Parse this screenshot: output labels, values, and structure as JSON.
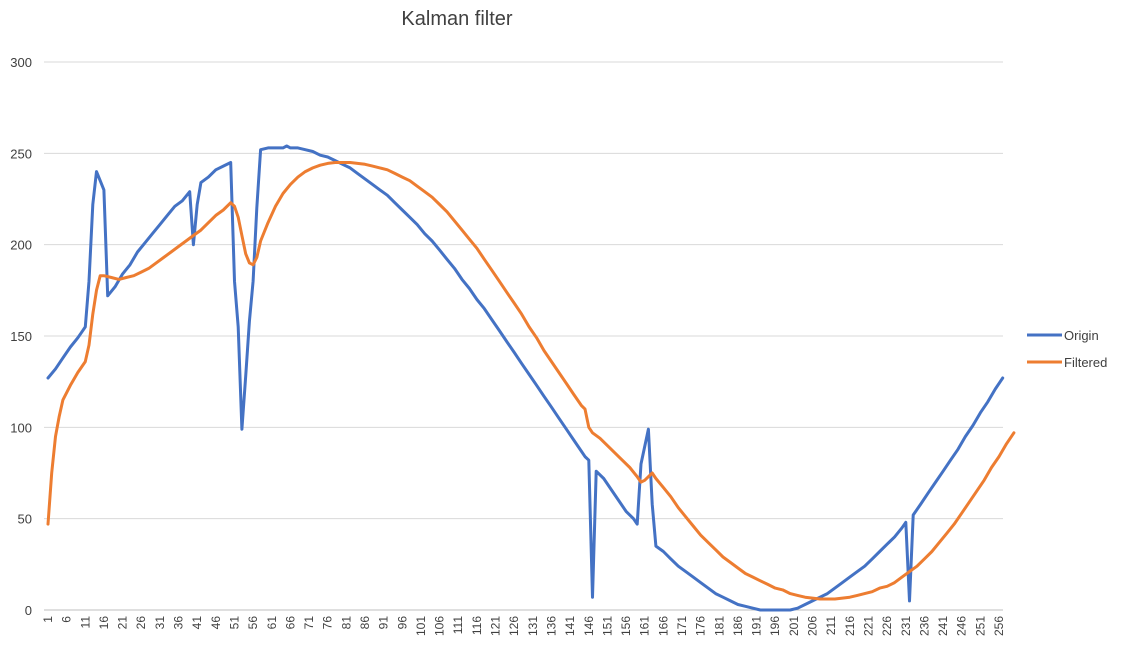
{
  "chart_data": {
    "type": "line",
    "title": "Kalman filter",
    "xlabel": "",
    "ylabel": "",
    "ylim": [
      0,
      300
    ],
    "yticks": [
      0,
      50,
      100,
      150,
      200,
      250,
      300
    ],
    "xlim": [
      1,
      256
    ],
    "xtick_labels": [
      "1",
      "6",
      "11",
      "16",
      "21",
      "26",
      "31",
      "36",
      "41",
      "46",
      "51",
      "56",
      "61",
      "66",
      "71",
      "76",
      "81",
      "86",
      "91",
      "96",
      "101",
      "106",
      "111",
      "116",
      "121",
      "126",
      "131",
      "136",
      "141",
      "146",
      "151",
      "156",
      "161",
      "166",
      "171",
      "176",
      "181",
      "186",
      "191",
      "196",
      "201",
      "206",
      "211",
      "216",
      "221",
      "226",
      "231",
      "236",
      "241",
      "246",
      "251",
      "256"
    ],
    "grid": "horizontal",
    "legend_position": "right",
    "series": [
      {
        "name": "Origin",
        "color": "#4472C4",
        "points": [
          [
            1,
            127
          ],
          [
            3,
            132
          ],
          [
            5,
            138
          ],
          [
            7,
            144
          ],
          [
            9,
            149
          ],
          [
            10,
            152
          ],
          [
            11,
            155
          ],
          [
            12,
            180
          ],
          [
            13,
            222
          ],
          [
            14,
            240
          ],
          [
            15,
            235
          ],
          [
            16,
            230
          ],
          [
            17,
            172
          ],
          [
            19,
            177
          ],
          [
            21,
            184
          ],
          [
            23,
            189
          ],
          [
            25,
            196
          ],
          [
            27,
            201
          ],
          [
            29,
            206
          ],
          [
            31,
            211
          ],
          [
            33,
            216
          ],
          [
            35,
            221
          ],
          [
            37,
            224
          ],
          [
            39,
            229
          ],
          [
            40,
            200
          ],
          [
            41,
            222
          ],
          [
            42,
            234
          ],
          [
            44,
            237
          ],
          [
            46,
            241
          ],
          [
            48,
            243
          ],
          [
            50,
            245
          ],
          [
            51,
            180
          ],
          [
            52,
            155
          ],
          [
            53,
            99
          ],
          [
            54,
            128
          ],
          [
            55,
            158
          ],
          [
            56,
            180
          ],
          [
            57,
            220
          ],
          [
            58,
            252
          ],
          [
            60,
            253
          ],
          [
            62,
            253
          ],
          [
            64,
            253
          ],
          [
            65,
            254
          ],
          [
            66,
            253
          ],
          [
            68,
            253
          ],
          [
            70,
            252
          ],
          [
            72,
            251
          ],
          [
            74,
            249
          ],
          [
            76,
            248
          ],
          [
            78,
            246
          ],
          [
            80,
            244
          ],
          [
            82,
            242
          ],
          [
            84,
            239
          ],
          [
            86,
            236
          ],
          [
            88,
            233
          ],
          [
            90,
            230
          ],
          [
            92,
            227
          ],
          [
            94,
            223
          ],
          [
            96,
            219
          ],
          [
            98,
            215
          ],
          [
            100,
            211
          ],
          [
            102,
            206
          ],
          [
            104,
            202
          ],
          [
            106,
            197
          ],
          [
            108,
            192
          ],
          [
            110,
            187
          ],
          [
            112,
            181
          ],
          [
            114,
            176
          ],
          [
            116,
            170
          ],
          [
            118,
            165
          ],
          [
            120,
            159
          ],
          [
            122,
            153
          ],
          [
            124,
            147
          ],
          [
            126,
            141
          ],
          [
            128,
            135
          ],
          [
            130,
            129
          ],
          [
            132,
            123
          ],
          [
            134,
            117
          ],
          [
            136,
            111
          ],
          [
            138,
            105
          ],
          [
            140,
            99
          ],
          [
            142,
            93
          ],
          [
            144,
            87
          ],
          [
            145,
            84
          ],
          [
            146,
            82
          ],
          [
            147,
            7
          ],
          [
            148,
            76
          ],
          [
            150,
            72
          ],
          [
            152,
            66
          ],
          [
            154,
            60
          ],
          [
            156,
            54
          ],
          [
            158,
            50
          ],
          [
            159,
            47
          ],
          [
            160,
            80
          ],
          [
            162,
            99
          ],
          [
            163,
            58
          ],
          [
            164,
            35
          ],
          [
            166,
            32
          ],
          [
            168,
            28
          ],
          [
            170,
            24
          ],
          [
            172,
            21
          ],
          [
            174,
            18
          ],
          [
            176,
            15
          ],
          [
            178,
            12
          ],
          [
            180,
            9
          ],
          [
            182,
            7
          ],
          [
            184,
            5
          ],
          [
            186,
            3
          ],
          [
            188,
            2
          ],
          [
            190,
            1
          ],
          [
            192,
            0
          ],
          [
            194,
            0
          ],
          [
            196,
            0
          ],
          [
            198,
            0
          ],
          [
            200,
            0
          ],
          [
            202,
            1
          ],
          [
            204,
            3
          ],
          [
            206,
            5
          ],
          [
            208,
            7
          ],
          [
            210,
            9
          ],
          [
            212,
            12
          ],
          [
            214,
            15
          ],
          [
            216,
            18
          ],
          [
            218,
            21
          ],
          [
            220,
            24
          ],
          [
            222,
            28
          ],
          [
            224,
            32
          ],
          [
            226,
            36
          ],
          [
            228,
            40
          ],
          [
            230,
            45
          ],
          [
            231,
            48
          ],
          [
            232,
            5
          ],
          [
            233,
            52
          ],
          [
            235,
            58
          ],
          [
            237,
            64
          ],
          [
            239,
            70
          ],
          [
            241,
            76
          ],
          [
            243,
            82
          ],
          [
            245,
            88
          ],
          [
            247,
            95
          ],
          [
            249,
            101
          ],
          [
            251,
            108
          ],
          [
            253,
            114
          ],
          [
            255,
            121
          ],
          [
            257,
            127
          ]
        ]
      },
      {
        "name": "Filtered",
        "color": "#ED7D31",
        "points": [
          [
            1,
            47
          ],
          [
            2,
            75
          ],
          [
            3,
            95
          ],
          [
            4,
            106
          ],
          [
            5,
            115
          ],
          [
            7,
            123
          ],
          [
            9,
            130
          ],
          [
            11,
            136
          ],
          [
            12,
            145
          ],
          [
            13,
            162
          ],
          [
            14,
            175
          ],
          [
            15,
            183
          ],
          [
            16,
            183
          ],
          [
            18,
            182
          ],
          [
            20,
            181
          ],
          [
            22,
            182
          ],
          [
            24,
            183
          ],
          [
            26,
            185
          ],
          [
            28,
            187
          ],
          [
            30,
            190
          ],
          [
            32,
            193
          ],
          [
            34,
            196
          ],
          [
            36,
            199
          ],
          [
            38,
            202
          ],
          [
            40,
            205
          ],
          [
            42,
            208
          ],
          [
            44,
            212
          ],
          [
            46,
            216
          ],
          [
            48,
            219
          ],
          [
            50,
            223
          ],
          [
            51,
            221
          ],
          [
            52,
            215
          ],
          [
            53,
            205
          ],
          [
            54,
            195
          ],
          [
            55,
            190
          ],
          [
            56,
            189
          ],
          [
            57,
            193
          ],
          [
            58,
            202
          ],
          [
            60,
            212
          ],
          [
            62,
            221
          ],
          [
            64,
            228
          ],
          [
            66,
            233
          ],
          [
            68,
            237
          ],
          [
            70,
            240
          ],
          [
            72,
            242
          ],
          [
            74,
            243.5
          ],
          [
            76,
            244.5
          ],
          [
            78,
            245
          ],
          [
            80,
            245
          ],
          [
            82,
            245
          ],
          [
            84,
            244.5
          ],
          [
            86,
            244
          ],
          [
            88,
            243
          ],
          [
            90,
            242
          ],
          [
            92,
            241
          ],
          [
            94,
            239
          ],
          [
            96,
            237
          ],
          [
            98,
            235
          ],
          [
            100,
            232
          ],
          [
            102,
            229
          ],
          [
            104,
            226
          ],
          [
            106,
            222
          ],
          [
            108,
            218
          ],
          [
            110,
            213
          ],
          [
            112,
            208
          ],
          [
            114,
            203
          ],
          [
            116,
            198
          ],
          [
            118,
            192
          ],
          [
            120,
            186
          ],
          [
            122,
            180
          ],
          [
            124,
            174
          ],
          [
            126,
            168
          ],
          [
            128,
            162
          ],
          [
            130,
            155
          ],
          [
            132,
            149
          ],
          [
            134,
            142
          ],
          [
            136,
            136
          ],
          [
            138,
            130
          ],
          [
            140,
            124
          ],
          [
            142,
            118
          ],
          [
            144,
            112
          ],
          [
            145,
            110
          ],
          [
            146,
            100
          ],
          [
            147,
            97
          ],
          [
            149,
            94
          ],
          [
            151,
            90
          ],
          [
            153,
            86
          ],
          [
            155,
            82
          ],
          [
            157,
            78
          ],
          [
            159,
            73
          ],
          [
            160,
            70
          ],
          [
            161,
            71
          ],
          [
            162,
            73
          ],
          [
            163,
            75
          ],
          [
            164,
            72
          ],
          [
            166,
            67
          ],
          [
            168,
            62
          ],
          [
            170,
            56
          ],
          [
            172,
            51
          ],
          [
            174,
            46
          ],
          [
            176,
            41
          ],
          [
            178,
            37
          ],
          [
            180,
            33
          ],
          [
            182,
            29
          ],
          [
            184,
            26
          ],
          [
            186,
            23
          ],
          [
            188,
            20
          ],
          [
            190,
            18
          ],
          [
            192,
            16
          ],
          [
            194,
            14
          ],
          [
            196,
            12
          ],
          [
            198,
            11
          ],
          [
            200,
            9
          ],
          [
            202,
            8
          ],
          [
            204,
            7
          ],
          [
            206,
            6.5
          ],
          [
            208,
            6
          ],
          [
            210,
            6
          ],
          [
            212,
            6
          ],
          [
            214,
            6.5
          ],
          [
            216,
            7
          ],
          [
            218,
            8
          ],
          [
            220,
            9
          ],
          [
            222,
            10
          ],
          [
            224,
            12
          ],
          [
            226,
            13
          ],
          [
            228,
            15
          ],
          [
            230,
            18
          ],
          [
            232,
            21
          ],
          [
            234,
            24
          ],
          [
            236,
            28
          ],
          [
            238,
            32
          ],
          [
            240,
            37
          ],
          [
            242,
            42
          ],
          [
            244,
            47
          ],
          [
            246,
            53
          ],
          [
            248,
            59
          ],
          [
            250,
            65
          ],
          [
            252,
            71
          ],
          [
            254,
            78
          ],
          [
            256,
            84
          ],
          [
            258,
            91
          ],
          [
            260,
            97
          ]
        ]
      }
    ]
  }
}
